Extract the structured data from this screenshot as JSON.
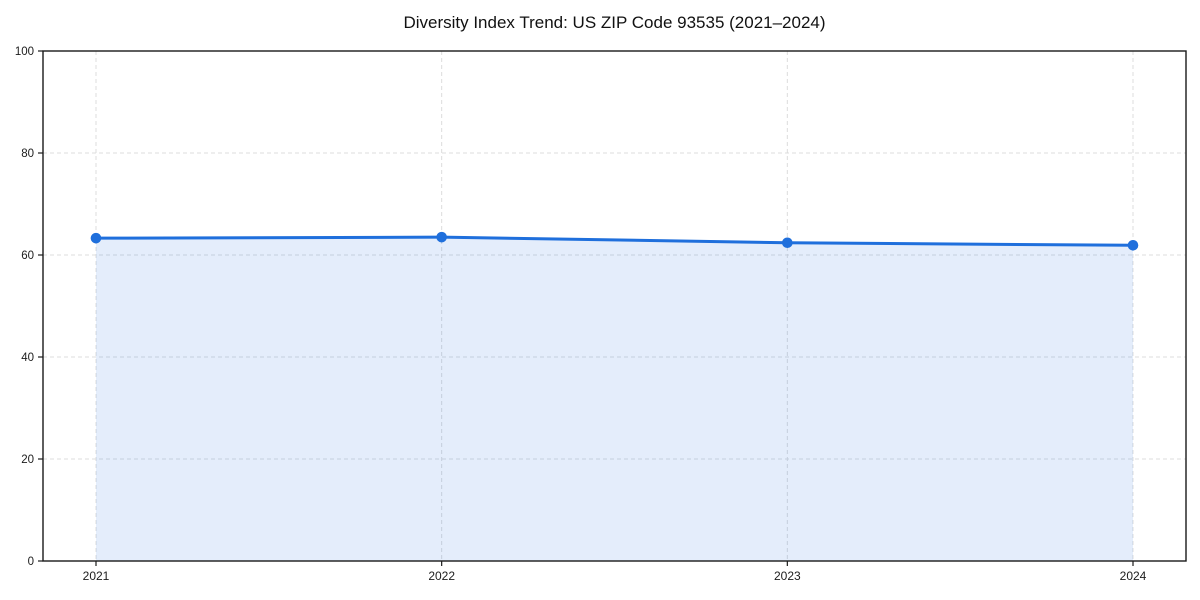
{
  "page": {
    "background": "#ffffff"
  },
  "chart_data": {
    "type": "area",
    "title": "Diversity Index Trend: US ZIP Code 93535 (2021–2024)",
    "categories": [
      "2021",
      "2022",
      "2023",
      "2024"
    ],
    "series": [
      {
        "name": "Diversity Index",
        "values": [
          63.3,
          63.5,
          62.4,
          61.9
        ]
      }
    ],
    "xlabel": "",
    "ylabel": "",
    "ylim": [
      0,
      100
    ],
    "yticks": [
      0,
      20,
      40,
      60,
      80,
      100
    ],
    "grid": true,
    "grid_style": "dashed",
    "legend_position": "none",
    "line_color": "#1f6fdc",
    "marker_color": "#1f6fdc",
    "fill_color": "rgba(31,111,220,0.12)",
    "frame_color": "#1a1a1a",
    "grid_color": "#dcdcdc",
    "tick_label_color": "#1c1c1c"
  }
}
